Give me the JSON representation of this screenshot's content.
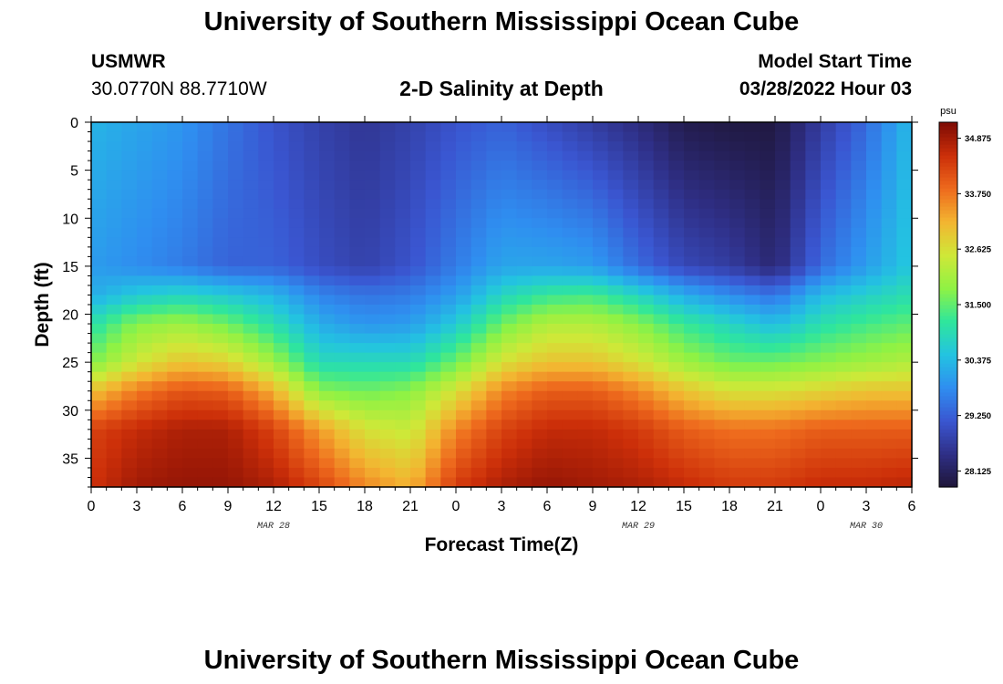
{
  "page": {
    "title": "University of Southern Mississippi Ocean Cube",
    "station": "USMWR",
    "coords": "30.0770N  88.7710W",
    "subtitle": "2-D Salinity at Depth",
    "model_label": "Model Start Time",
    "model_time": "03/28/2022 Hour 03",
    "footer_title": "University of Southern Mississippi Ocean Cube"
  },
  "colors": {
    "background": "#ffffff",
    "colormap": [
      "#1e1537",
      "#2f2f86",
      "#3a56d1",
      "#2f8ef0",
      "#23c3e1",
      "#2fe69c",
      "#8ff244",
      "#cfe838",
      "#f3b531",
      "#ee6a1d",
      "#cc2f09",
      "#7e0b04"
    ]
  },
  "chart_data": {
    "type": "heatmap",
    "title": "2-D Salinity at Depth",
    "xlabel": "Forecast Time(Z)",
    "ylabel": "Depth (ft)",
    "x_tick_labels": [
      "0",
      "3",
      "6",
      "9",
      "12",
      "15",
      "18",
      "21",
      "0",
      "3",
      "6",
      "9",
      "12",
      "15",
      "18",
      "21",
      "0",
      "3",
      "6"
    ],
    "x_day_labels": [
      {
        "label": "MAR 28",
        "at_hour": 12
      },
      {
        "label": "MAR 29",
        "at_hour": 36
      },
      {
        "label": "MAR 30",
        "at_hour": 51
      }
    ],
    "x_range_hours": [
      0,
      54
    ],
    "y_ticks": [
      0,
      5,
      10,
      15,
      20,
      25,
      30,
      35
    ],
    "y_range": [
      0,
      38
    ],
    "colorbar": {
      "unit": "psu",
      "range": [
        27.8,
        35.2
      ],
      "tick_values": [
        28.125,
        29.25,
        30.375,
        31.5,
        32.625,
        33.75,
        34.875
      ],
      "tick_labels": [
        "28.125",
        "29.250",
        "30.375",
        "31.500",
        "32.625",
        "33.750",
        "34.875"
      ]
    },
    "grid": {
      "time_steps": 54,
      "depth_steps": 38
    },
    "depth_profile_ft": [
      0,
      15,
      18,
      21,
      25,
      28,
      32,
      38
    ],
    "columns_psu": [
      {
        "hour": 0,
        "values": [
          30.3,
          30.0,
          30.2,
          31.0,
          31.7,
          33.0,
          34.3,
          34.5
        ]
      },
      {
        "hour": 3,
        "values": [
          30.1,
          29.8,
          30.6,
          31.8,
          32.5,
          33.7,
          34.6,
          34.9
        ]
      },
      {
        "hour": 6,
        "values": [
          29.9,
          29.6,
          30.8,
          32.0,
          33.0,
          34.1,
          34.8,
          35.0
        ]
      },
      {
        "hour": 9,
        "values": [
          29.5,
          29.3,
          30.6,
          31.6,
          32.8,
          34.0,
          34.8,
          35.0
        ]
      },
      {
        "hour": 12,
        "values": [
          29.1,
          29.3,
          30.3,
          31.0,
          32.0,
          33.2,
          34.3,
          34.8
        ]
      },
      {
        "hour": 15,
        "values": [
          28.8,
          29.0,
          29.7,
          30.2,
          30.9,
          31.8,
          33.4,
          34.3
        ]
      },
      {
        "hour": 18,
        "values": [
          28.6,
          28.8,
          29.5,
          29.9,
          30.9,
          31.6,
          32.6,
          33.6
        ]
      },
      {
        "hour": 21,
        "values": [
          28.8,
          29.1,
          29.6,
          30.0,
          30.9,
          31.8,
          32.4,
          33.2
        ]
      },
      {
        "hour": 24,
        "values": [
          29.1,
          29.6,
          30.0,
          30.6,
          31.6,
          32.6,
          33.6,
          34.4
        ]
      },
      {
        "hour": 27,
        "values": [
          29.3,
          30.1,
          30.8,
          31.6,
          32.6,
          33.6,
          34.3,
          34.8
        ]
      },
      {
        "hour": 30,
        "values": [
          29.0,
          30.1,
          31.2,
          32.2,
          33.0,
          34.0,
          34.6,
          35.0
        ]
      },
      {
        "hour": 33,
        "values": [
          28.7,
          30.0,
          31.3,
          32.2,
          33.0,
          34.0,
          34.6,
          34.9
        ]
      },
      {
        "hour": 36,
        "values": [
          28.4,
          29.4,
          30.8,
          31.8,
          32.6,
          33.6,
          34.4,
          34.8
        ]
      },
      {
        "hour": 39,
        "values": [
          28.0,
          28.9,
          30.2,
          31.2,
          32.0,
          33.0,
          34.0,
          34.6
        ]
      },
      {
        "hour": 42,
        "values": [
          27.9,
          28.7,
          29.8,
          30.8,
          31.6,
          32.6,
          33.8,
          34.4
        ]
      },
      {
        "hour": 45,
        "values": [
          27.9,
          28.3,
          29.5,
          30.4,
          31.6,
          32.6,
          33.8,
          34.4
        ]
      },
      {
        "hour": 48,
        "values": [
          28.7,
          29.4,
          30.4,
          31.0,
          31.8,
          32.8,
          34.0,
          34.6
        ]
      },
      {
        "hour": 51,
        "values": [
          29.4,
          30.0,
          30.7,
          31.3,
          32.0,
          33.0,
          34.0,
          34.6
        ]
      },
      {
        "hour": 54,
        "values": [
          30.4,
          30.6,
          31.0,
          31.5,
          32.2,
          33.0,
          34.0,
          34.7
        ]
      }
    ]
  }
}
